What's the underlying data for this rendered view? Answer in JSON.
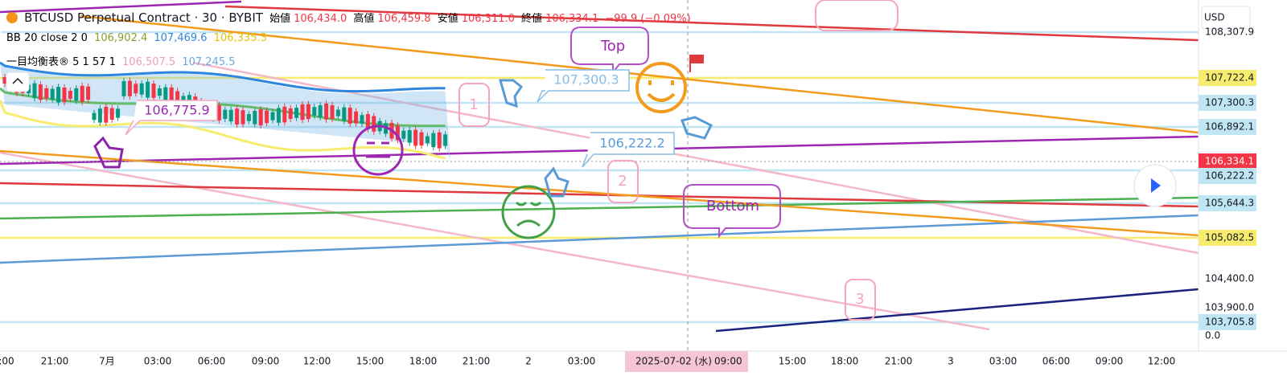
{
  "header": {
    "symbol": "BTCUSD Perpetual Contract · 30 · BYBIT",
    "ohlc": [
      {
        "label": "始値",
        "value": "106,434.0"
      },
      {
        "label": "高値",
        "value": "106,459.8"
      },
      {
        "label": "安値",
        "value": "106,311.0"
      },
      {
        "label": "終値",
        "value": "106,334.1"
      }
    ],
    "change": "−99.9 (−0.09%)"
  },
  "indicators": [
    {
      "name": "BB 20 close 2 0",
      "values": [
        "106,902.4",
        "107,469.6",
        "106,335.3"
      ]
    },
    {
      "name": "一目均衡表® 5 1 57 1",
      "values": [
        "106,507.5",
        "107,245.5"
      ]
    }
  ],
  "currency": "USD",
  "price_labels": [
    "108,307.9",
    "107,722.4",
    "107,300.3",
    "106,892.1",
    "106,334.1",
    "106,222.2",
    "105,644.3",
    "105,082.5",
    "104,400.0",
    "103,900.0",
    "103,705.8",
    "0.0"
  ],
  "time_labels": [
    ":00",
    "21:00",
    "7月",
    "03:00",
    "06:00",
    "09:00",
    "12:00",
    "15:00",
    "18:00",
    "21:00",
    "2",
    "03:00",
    "15:00",
    "18:00",
    "21:00",
    "3",
    "03:00",
    "06:00",
    "09:00",
    "12:00"
  ],
  "crosshair": {
    "date": "2025-07-02 (水)",
    "time": "09:00"
  },
  "annotations": {
    "top": "Top",
    "bottom": "Bottom",
    "callouts": [
      "107,300.3",
      "106,222.2",
      "106,775.9"
    ],
    "marks": [
      "1",
      "2",
      "3"
    ]
  }
}
